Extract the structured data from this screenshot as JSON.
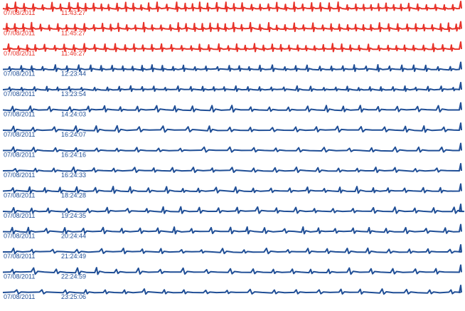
{
  "chart_data": {
    "type": "line",
    "title": "",
    "xlabel": "",
    "ylabel": "",
    "grid": false,
    "legend": "none",
    "colors": {
      "alarm": "#e8332a",
      "normal": "#1f4e96"
    },
    "series": [
      {
        "date": "07/08/2011",
        "time": "11:43:27",
        "rhythm": "alarm",
        "beat_interval": 12,
        "beat_amplitude": 7
      },
      {
        "date": "07/08/2011",
        "time": "11:45:27",
        "rhythm": "alarm",
        "beat_interval": 12,
        "beat_amplitude": 7
      },
      {
        "date": "07/08/2011",
        "time": "11:46:27",
        "rhythm": "alarm",
        "beat_interval": 13,
        "beat_amplitude": 6
      },
      {
        "date": "07/08/2011",
        "time": "12:23:44",
        "rhythm": "normal",
        "beat_interval": 16,
        "beat_amplitude": 5
      },
      {
        "date": "07/08/2011",
        "time": "13:23:54",
        "rhythm": "normal",
        "beat_interval": 17,
        "beat_amplitude": 4
      },
      {
        "date": "07/08/2011",
        "time": "14:24:03",
        "rhythm": "normal",
        "beat_interval": 26,
        "beat_amplitude": 5
      },
      {
        "date": "07/08/2011",
        "time": "16:24:07",
        "rhythm": "normal",
        "beat_interval": 30,
        "beat_amplitude": 5
      },
      {
        "date": "07/08/2011",
        "time": "16:24:16",
        "rhythm": "normal",
        "beat_interval": 32,
        "beat_amplitude": 4
      },
      {
        "date": "07/08/2011",
        "time": "16:24:33",
        "rhythm": "normal",
        "beat_interval": 28,
        "beat_amplitude": 4
      },
      {
        "date": "07/08/2011",
        "time": "18:24:28",
        "rhythm": "normal",
        "beat_interval": 24,
        "beat_amplitude": 5
      },
      {
        "date": "07/08/2011",
        "time": "19:24:35",
        "rhythm": "normal",
        "beat_interval": 27,
        "beat_amplitude": 5
      },
      {
        "date": "07/08/2011",
        "time": "20:24:44",
        "rhythm": "normal",
        "beat_interval": 25,
        "beat_amplitude": 5
      },
      {
        "date": "07/08/2011",
        "time": "21:24:49",
        "rhythm": "normal",
        "beat_interval": 30,
        "beat_amplitude": 4
      },
      {
        "date": "07/08/2011",
        "time": "22:24:59",
        "rhythm": "normal",
        "beat_interval": 29,
        "beat_amplitude": 5
      },
      {
        "date": "07/08/2011",
        "time": "23:25:06",
        "rhythm": "normal",
        "beat_interval": 31,
        "beat_amplitude": 4
      }
    ]
  }
}
